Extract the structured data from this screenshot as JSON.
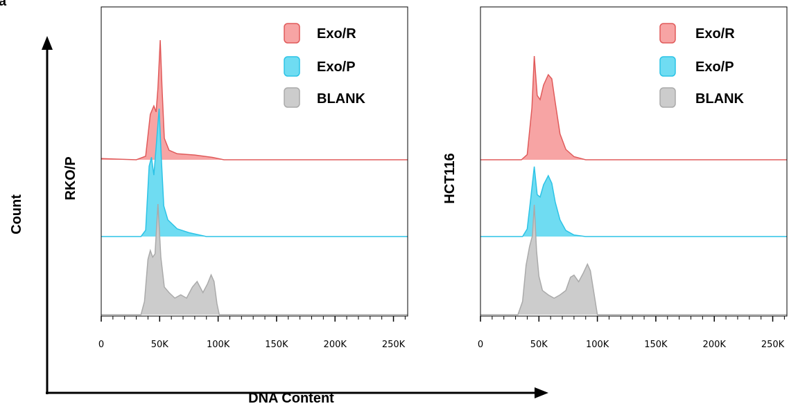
{
  "figure": {
    "panel_letter": "a",
    "y_axis_label": "Count",
    "x_axis_label": "DNA Content"
  },
  "colors": {
    "exo_r_fill": "#f7a4a4",
    "exo_r_line": "#e05a5a",
    "exo_p_fill": "#6fdcf2",
    "exo_p_line": "#2cc3e6",
    "blank_fill": "#cccccc",
    "blank_line": "#aaaaaa"
  },
  "chart_data": [
    {
      "type": "area",
      "panel_label": "RKO/P",
      "xlim": [
        0,
        262144
      ],
      "x_tick_values": [
        0,
        50000,
        100000,
        150000,
        200000,
        250000
      ],
      "x_tick_labels": [
        "0",
        "50K",
        "100K",
        "150K",
        "200K",
        "250K"
      ],
      "legend_position": "top-right",
      "legend": [
        "Exo/R",
        "Exo/P",
        "BLANK"
      ],
      "series": [
        {
          "name": "Exo/R",
          "points": [
            [
              0,
              0.01
            ],
            [
              30000,
              0.0
            ],
            [
              38000,
              0.03
            ],
            [
              42000,
              0.38
            ],
            [
              45000,
              0.45
            ],
            [
              47000,
              0.4
            ],
            [
              48500,
              0.6
            ],
            [
              50500,
              1.0
            ],
            [
              52000,
              0.6
            ],
            [
              54000,
              0.18
            ],
            [
              58000,
              0.08
            ],
            [
              65000,
              0.05
            ],
            [
              80000,
              0.04
            ],
            [
              95000,
              0.02
            ],
            [
              105000,
              0.0
            ],
            [
              262144,
              0.0
            ]
          ]
        },
        {
          "name": "Exo/P",
          "points": [
            [
              0,
              0.0
            ],
            [
              34000,
              0.0
            ],
            [
              38000,
              0.05
            ],
            [
              41000,
              0.55
            ],
            [
              43000,
              0.62
            ],
            [
              45000,
              0.48
            ],
            [
              47000,
              0.7
            ],
            [
              49500,
              1.0
            ],
            [
              51500,
              0.6
            ],
            [
              53500,
              0.24
            ],
            [
              57000,
              0.13
            ],
            [
              65000,
              0.06
            ],
            [
              75000,
              0.03
            ],
            [
              90000,
              0.0
            ],
            [
              262144,
              0.0
            ]
          ]
        },
        {
          "name": "BLANK",
          "points": [
            [
              0,
              0.0
            ],
            [
              34000,
              0.0
            ],
            [
              37000,
              0.12
            ],
            [
              40000,
              0.5
            ],
            [
              42000,
              0.58
            ],
            [
              44000,
              0.52
            ],
            [
              46000,
              0.55
            ],
            [
              48500,
              1.0
            ],
            [
              51000,
              0.52
            ],
            [
              54000,
              0.25
            ],
            [
              58000,
              0.2
            ],
            [
              63000,
              0.15
            ],
            [
              68000,
              0.18
            ],
            [
              73000,
              0.15
            ],
            [
              78000,
              0.25
            ],
            [
              82000,
              0.3
            ],
            [
              87000,
              0.2
            ],
            [
              91000,
              0.28
            ],
            [
              94000,
              0.36
            ],
            [
              96500,
              0.3
            ],
            [
              99000,
              0.1
            ],
            [
              101000,
              0.0
            ],
            [
              262144,
              0.0
            ]
          ]
        }
      ]
    },
    {
      "type": "area",
      "panel_label": "HCT116",
      "xlim": [
        0,
        262144
      ],
      "x_tick_values": [
        0,
        50000,
        100000,
        150000,
        200000,
        250000
      ],
      "x_tick_labels": [
        "0",
        "50K",
        "100K",
        "150K",
        "200K",
        "250K"
      ],
      "legend_position": "top-right",
      "legend": [
        "Exo/R",
        "Exo/P",
        "BLANK"
      ],
      "series": [
        {
          "name": "Exo/R",
          "points": [
            [
              0,
              0.0
            ],
            [
              35000,
              0.0
            ],
            [
              40000,
              0.05
            ],
            [
              44000,
              0.5
            ],
            [
              46000,
              1.0
            ],
            [
              48500,
              0.62
            ],
            [
              51000,
              0.58
            ],
            [
              54000,
              0.72
            ],
            [
              58000,
              0.82
            ],
            [
              61000,
              0.78
            ],
            [
              64000,
              0.55
            ],
            [
              68000,
              0.25
            ],
            [
              73000,
              0.1
            ],
            [
              80000,
              0.03
            ],
            [
              90000,
              0.0
            ],
            [
              262144,
              0.0
            ]
          ]
        },
        {
          "name": "Exo/P",
          "points": [
            [
              0,
              0.0
            ],
            [
              36000,
              0.0
            ],
            [
              40000,
              0.1
            ],
            [
              43000,
              0.5
            ],
            [
              46000,
              0.92
            ],
            [
              48500,
              0.55
            ],
            [
              51000,
              0.52
            ],
            [
              54000,
              0.68
            ],
            [
              58000,
              0.8
            ],
            [
              61000,
              0.7
            ],
            [
              64000,
              0.45
            ],
            [
              68000,
              0.22
            ],
            [
              73000,
              0.08
            ],
            [
              80000,
              0.02
            ],
            [
              90000,
              0.0
            ],
            [
              262144,
              0.0
            ]
          ]
        },
        {
          "name": "BLANK",
          "points": [
            [
              0,
              0.0
            ],
            [
              32000,
              0.0
            ],
            [
              36000,
              0.12
            ],
            [
              39000,
              0.45
            ],
            [
              42000,
              0.62
            ],
            [
              44500,
              0.72
            ],
            [
              46000,
              1.0
            ],
            [
              48000,
              0.58
            ],
            [
              50000,
              0.35
            ],
            [
              53000,
              0.22
            ],
            [
              58000,
              0.18
            ],
            [
              63000,
              0.15
            ],
            [
              68000,
              0.18
            ],
            [
              73000,
              0.22
            ],
            [
              77000,
              0.34
            ],
            [
              80000,
              0.36
            ],
            [
              84000,
              0.3
            ],
            [
              88000,
              0.38
            ],
            [
              91500,
              0.46
            ],
            [
              94000,
              0.4
            ],
            [
              97000,
              0.2
            ],
            [
              100000,
              0.0
            ],
            [
              262144,
              0.0
            ]
          ]
        }
      ]
    }
  ]
}
